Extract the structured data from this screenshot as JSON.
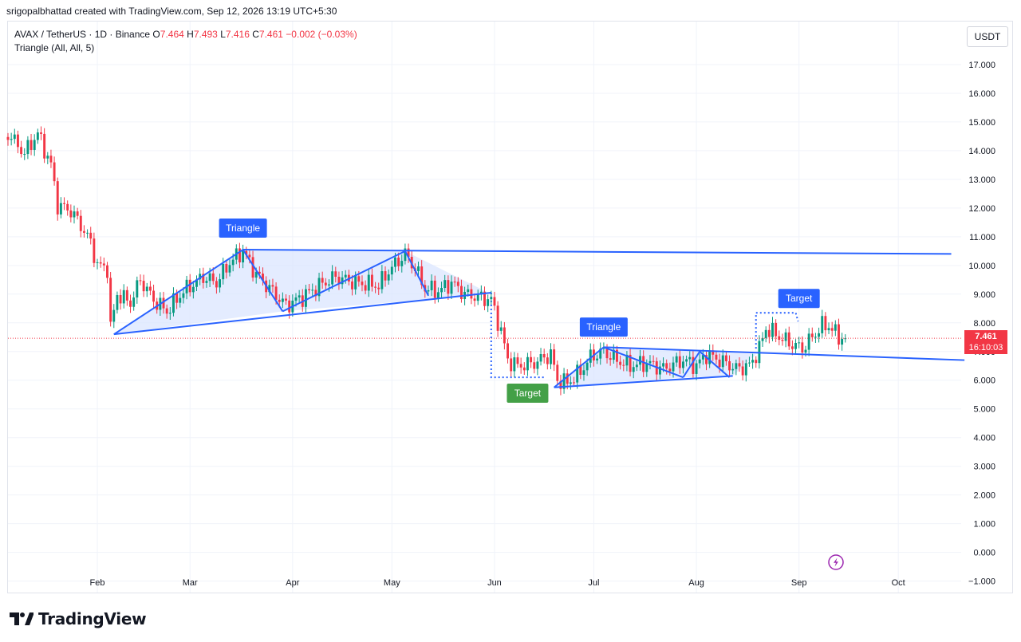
{
  "header": {
    "created_by": "srigopalbhattad created with TradingView.com, Sep 12, 2026 13:19 UTC+5:30"
  },
  "legend": {
    "symbol": "AVAX / TetherUS · 1D · Binance",
    "open_label": "O",
    "open": "7.464",
    "high_label": "H",
    "high": "7.493",
    "low_label": "L",
    "low": "7.416",
    "close_label": "C",
    "close": "7.461",
    "change": "−0.002 (−0.03%)",
    "indicator": "Triangle (All, All, 5)"
  },
  "price_scale": {
    "unit": "USDT"
  },
  "last_price": {
    "value": "7.461",
    "countdown": "16:10:03"
  },
  "brand": {
    "name": "TradingView"
  },
  "colors": {
    "up": "#089981",
    "down": "#f23645",
    "pattern_line": "#2962ff",
    "pattern_fill": "#dbe6ff",
    "target_up": "#2962ff",
    "target_down": "#43a047"
  },
  "chart_data": {
    "type": "candlestick",
    "timeframe": "1D",
    "symbol": "AVAX/USDT",
    "exchange": "Binance",
    "ylim": [
      -1.4,
      18.5
    ],
    "y_ticks": [
      -1,
      0,
      1,
      2,
      3,
      4,
      5,
      6,
      7,
      8,
      9,
      10,
      11,
      12,
      13,
      14,
      15,
      16,
      17
    ],
    "x_ticks": [
      {
        "label": "Feb",
        "day": 0
      },
      {
        "label": "Mar",
        "day": 28
      },
      {
        "label": "Apr",
        "day": 59
      },
      {
        "label": "May",
        "day": 89
      },
      {
        "label": "Jun",
        "day": 120
      },
      {
        "label": "Jul",
        "day": 150
      },
      {
        "label": "Aug",
        "day": 181
      },
      {
        "label": "Sep",
        "day": 212
      },
      {
        "label": "Oct",
        "day": 242
      }
    ],
    "x_range_days": [
      -27,
      261
    ],
    "close_anchors": [
      [
        -27,
        14.6
      ],
      [
        -22,
        13.9
      ],
      [
        -18,
        14.6
      ],
      [
        -14,
        13.5
      ],
      [
        -12,
        12.1
      ],
      [
        -8,
        11.9
      ],
      [
        -5,
        11.4
      ],
      [
        -2,
        10.8
      ],
      [
        0,
        10.0
      ],
      [
        3,
        9.9
      ],
      [
        4,
        7.8
      ],
      [
        6,
        9.0
      ],
      [
        10,
        8.7
      ],
      [
        13,
        9.5
      ],
      [
        17,
        8.8
      ],
      [
        21,
        8.4
      ],
      [
        26,
        9.1
      ],
      [
        32,
        9.6
      ],
      [
        36,
        9.4
      ],
      [
        40,
        10.1
      ],
      [
        44,
        10.5
      ],
      [
        48,
        9.7
      ],
      [
        52,
        9.2
      ],
      [
        57,
        8.6
      ],
      [
        62,
        8.9
      ],
      [
        67,
        9.3
      ],
      [
        72,
        9.6
      ],
      [
        78,
        9.4
      ],
      [
        85,
        9.3
      ],
      [
        88,
        9.8
      ],
      [
        93,
        10.4
      ],
      [
        96,
        9.9
      ],
      [
        99,
        9.2
      ],
      [
        103,
        9.1
      ],
      [
        107,
        9.4
      ],
      [
        111,
        9.0
      ],
      [
        115,
        8.9
      ],
      [
        119,
        8.8
      ],
      [
        122,
        7.7
      ],
      [
        124,
        6.7
      ],
      [
        127,
        6.5
      ],
      [
        132,
        6.6
      ],
      [
        137,
        6.9
      ],
      [
        139,
        6.0
      ],
      [
        142,
        5.9
      ],
      [
        146,
        6.3
      ],
      [
        149,
        6.8
      ],
      [
        153,
        7.0
      ],
      [
        157,
        6.7
      ],
      [
        161,
        6.5
      ],
      [
        166,
        6.6
      ],
      [
        171,
        6.4
      ],
      [
        177,
        6.7
      ],
      [
        181,
        6.5
      ],
      [
        184,
        6.9
      ],
      [
        188,
        6.7
      ],
      [
        193,
        6.4
      ],
      [
        197,
        6.5
      ],
      [
        200,
        7.1
      ],
      [
        202,
        7.8
      ],
      [
        205,
        7.6
      ],
      [
        209,
        7.3
      ],
      [
        213,
        7.1
      ],
      [
        216,
        7.5
      ],
      [
        219,
        7.9
      ],
      [
        221,
        7.9
      ],
      [
        224,
        7.5
      ],
      [
        226,
        7.46
      ]
    ],
    "last_close": 7.461,
    "patterns": [
      {
        "type": "triangle",
        "label": "Triangle",
        "lines": [
          [
            [
              5,
              7.6
            ],
            [
              44,
              10.55
            ]
          ],
          [
            [
              44,
              10.55
            ],
            [
              56,
              8.4
            ]
          ],
          [
            [
              56,
              8.4
            ],
            [
              93,
              10.5
            ]
          ],
          [
            [
              93,
              10.5
            ],
            [
              100,
              8.95
            ]
          ],
          [
            [
              44,
              10.55
            ],
            [
              258,
              10.4
            ]
          ],
          [
            [
              5,
              7.6
            ],
            [
              119,
              9.05
            ]
          ]
        ],
        "fill": [
          [
            5,
            7.6
          ],
          [
            44,
            10.55
          ],
          [
            93,
            10.5
          ],
          [
            119,
            9.0
          ],
          [
            56,
            8.4
          ]
        ],
        "label_at": [
          44,
          11.3
        ],
        "target": {
          "label": "Target",
          "color": "down",
          "box": [
            [
              119,
              9.05
            ],
            [
              135,
              6.1
            ]
          ],
          "label_at": [
            130,
            5.55
          ]
        }
      },
      {
        "type": "triangle",
        "label": "Triangle",
        "lines": [
          [
            [
              138,
              5.75
            ],
            [
              153,
              7.15
            ]
          ],
          [
            [
              153,
              7.15
            ],
            [
              177,
              6.1
            ]
          ],
          [
            [
              177,
              6.1
            ],
            [
              182,
              7.0
            ]
          ],
          [
            [
              182,
              7.0
            ],
            [
              191,
              6.1
            ]
          ],
          [
            [
              153,
              7.15
            ],
            [
              262,
              6.7
            ]
          ],
          [
            [
              138,
              5.75
            ],
            [
              192,
              6.15
            ]
          ]
        ],
        "fill": [
          [
            138,
            5.75
          ],
          [
            153,
            7.15
          ],
          [
            191,
            6.95
          ],
          [
            199,
            6.9
          ],
          [
            192,
            6.15
          ],
          [
            177,
            6.1
          ]
        ],
        "label_at": [
          153,
          7.85
        ],
        "target": {
          "label": "Target",
          "color": "up",
          "box": [
            [
              199,
              8.35
            ],
            [
              211,
              8.35
            ]
          ],
          "label_at": [
            212,
            8.85
          ]
        }
      }
    ]
  }
}
